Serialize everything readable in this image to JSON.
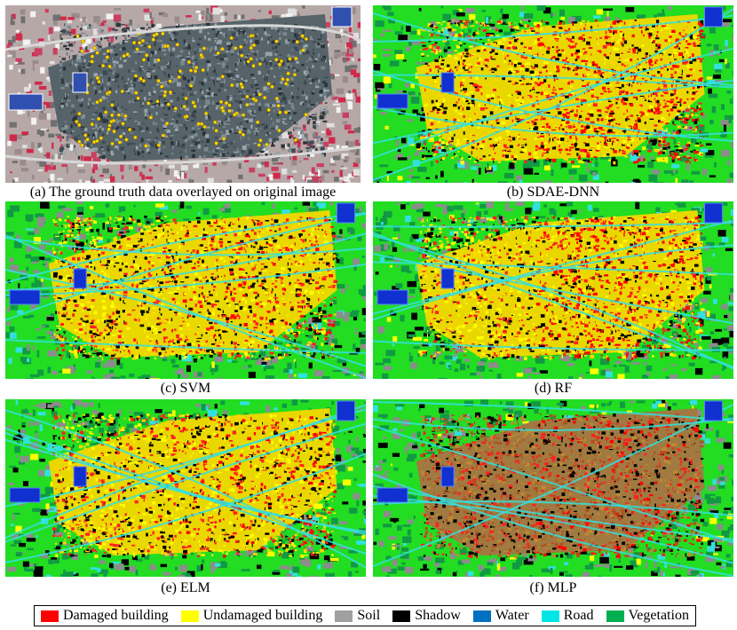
{
  "panels": [
    {
      "id": "a",
      "caption": "(a) The ground truth data overlayed on original image",
      "style": "original"
    },
    {
      "id": "b",
      "caption": "(b) SDAE-DNN",
      "style": "classified"
    },
    {
      "id": "c",
      "caption": "(c) SVM",
      "style": "classified"
    },
    {
      "id": "d",
      "caption": "(d) RF",
      "style": "classified"
    },
    {
      "id": "e",
      "caption": "(e) ELM",
      "style": "classified"
    },
    {
      "id": "f",
      "caption": "(f) MLP",
      "style": "classified"
    }
  ],
  "legend": [
    {
      "label": "Damaged building",
      "color": "#ff0000"
    },
    {
      "label": "Undamaged building",
      "color": "#ffff00"
    },
    {
      "label": "Soil",
      "color": "#a0a0a0"
    },
    {
      "label": "Shadow",
      "color": "#000000"
    },
    {
      "label": "Water",
      "color": "#0070c0"
    },
    {
      "label": "Road",
      "color": "#00e5e5"
    },
    {
      "label": "Vegetation",
      "color": "#00b050"
    }
  ]
}
